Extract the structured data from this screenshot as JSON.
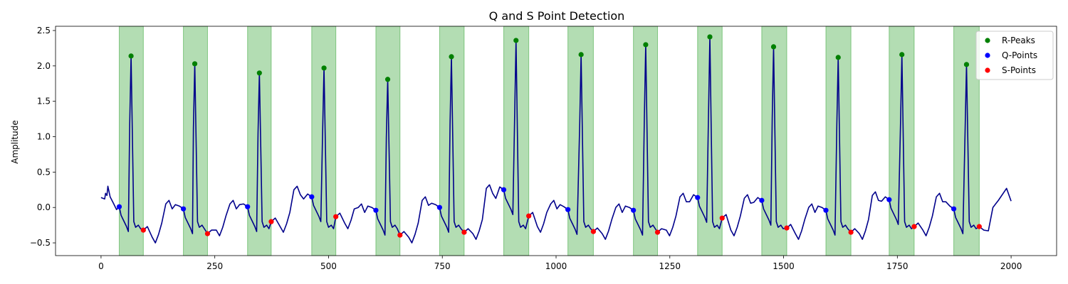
{
  "chart_data": {
    "type": "line",
    "title": "Q and S Point Detection",
    "xlabel": "",
    "ylabel": "Amplitude",
    "xlim": [
      -100,
      2100
    ],
    "ylim": [
      -0.68,
      2.56
    ],
    "xticks": [
      0,
      250,
      500,
      750,
      1000,
      1250,
      1500,
      1750,
      2000
    ],
    "yticks": [
      -0.5,
      0.0,
      0.5,
      1.0,
      1.5,
      2.0,
      2.5
    ],
    "ytick_labels": [
      "−0.5",
      "0.0",
      "0.5",
      "1.0",
      "1.5",
      "2.0",
      "2.5"
    ],
    "grid": false,
    "legend_position": "top-right",
    "colors": {
      "signal": "#00008b",
      "shading": "#2ca02c",
      "r_peaks": "#008000",
      "q_points": "#0000ff",
      "s_points": "#ff0000"
    },
    "shaded_intervals": [
      [
        40,
        93
      ],
      [
        181,
        234
      ],
      [
        322,
        374
      ],
      [
        463,
        516
      ],
      [
        604,
        657
      ],
      [
        744,
        798
      ],
      [
        885,
        940
      ],
      [
        1026,
        1082
      ],
      [
        1170,
        1223
      ],
      [
        1311,
        1365
      ],
      [
        1452,
        1507
      ],
      [
        1593,
        1648
      ],
      [
        1732,
        1787
      ],
      [
        1874,
        1930
      ]
    ],
    "series": [
      {
        "name": "R-Peaks",
        "marker": "circle",
        "x": [
          66,
          206,
          348,
          490,
          630,
          770,
          912,
          1055,
          1197,
          1338,
          1478,
          1620,
          1760,
          1902
        ],
        "y": [
          2.14,
          2.03,
          1.9,
          1.97,
          1.81,
          2.13,
          2.36,
          2.16,
          2.3,
          2.41,
          2.27,
          2.12,
          2.16,
          2.02
        ]
      },
      {
        "name": "Q-Points",
        "marker": "circle",
        "x": [
          40,
          181,
          322,
          463,
          604,
          744,
          885,
          1026,
          1170,
          1311,
          1452,
          1593,
          1732,
          1874
        ],
        "y": [
          0.01,
          -0.02,
          0.01,
          0.15,
          -0.04,
          0.0,
          0.25,
          -0.03,
          -0.04,
          0.14,
          0.1,
          -0.04,
          0.11,
          -0.02
        ]
      },
      {
        "name": "S-Points",
        "marker": "circle",
        "x": [
          93,
          234,
          374,
          516,
          657,
          798,
          940,
          1082,
          1223,
          1365,
          1507,
          1648,
          1787,
          1930
        ],
        "y": [
          -0.32,
          -0.37,
          -0.2,
          -0.13,
          -0.39,
          -0.35,
          -0.12,
          -0.34,
          -0.35,
          -0.15,
          -0.29,
          -0.35,
          -0.27,
          -0.27
        ]
      }
    ],
    "signal": {
      "beats": [
        {
          "q": 40,
          "r": 66,
          "s": 93,
          "pre": 0.2,
          "qv": 0.01,
          "rv": 2.14,
          "sv": -0.32,
          "tmin": -0.5
        },
        {
          "q": 181,
          "r": 206,
          "s": 234,
          "pre": 0.1,
          "qv": -0.02,
          "rv": 2.03,
          "sv": -0.37,
          "tmin": -0.4
        },
        {
          "q": 322,
          "r": 348,
          "s": 374,
          "pre": 0.1,
          "qv": 0.01,
          "rv": 1.9,
          "sv": -0.2,
          "tmin": -0.35
        },
        {
          "q": 463,
          "r": 490,
          "s": 516,
          "pre": 0.3,
          "qv": 0.15,
          "rv": 1.97,
          "sv": -0.13,
          "tmin": -0.3
        },
        {
          "q": 604,
          "r": 630,
          "s": 657,
          "pre": 0.05,
          "qv": -0.04,
          "rv": 1.81,
          "sv": -0.39,
          "tmin": -0.5
        },
        {
          "q": 744,
          "r": 770,
          "s": 798,
          "pre": 0.15,
          "qv": 0.0,
          "rv": 2.13,
          "sv": -0.35,
          "tmin": -0.45
        },
        {
          "q": 885,
          "r": 912,
          "s": 940,
          "pre": 0.32,
          "qv": 0.25,
          "rv": 2.36,
          "sv": -0.12,
          "tmin": -0.35
        },
        {
          "q": 1026,
          "r": 1055,
          "s": 1082,
          "pre": 0.1,
          "qv": -0.03,
          "rv": 2.16,
          "sv": -0.34,
          "tmin": -0.45
        },
        {
          "q": 1170,
          "r": 1197,
          "s": 1223,
          "pre": 0.05,
          "qv": -0.04,
          "rv": 2.3,
          "sv": -0.35,
          "tmin": -0.4
        },
        {
          "q": 1311,
          "r": 1338,
          "s": 1365,
          "pre": 0.2,
          "qv": 0.14,
          "rv": 2.41,
          "sv": -0.15,
          "tmin": -0.4
        },
        {
          "q": 1452,
          "r": 1478,
          "s": 1507,
          "pre": 0.18,
          "qv": 0.1,
          "rv": 2.27,
          "sv": -0.29,
          "tmin": -0.45
        },
        {
          "q": 1593,
          "r": 1620,
          "s": 1648,
          "pre": 0.05,
          "qv": -0.04,
          "rv": 2.12,
          "sv": -0.35,
          "tmin": -0.45
        },
        {
          "q": 1732,
          "r": 1760,
          "s": 1787,
          "pre": 0.22,
          "qv": 0.11,
          "rv": 2.16,
          "sv": -0.27,
          "tmin": -0.4
        },
        {
          "q": 1874,
          "r": 1902,
          "s": 1930,
          "pre": 0.2,
          "qv": -0.02,
          "rv": 2.02,
          "sv": -0.27,
          "tmin": -0.38
        }
      ],
      "start": [
        0,
        0.14
      ],
      "end": [
        2000,
        0.09
      ],
      "end_hump": [
        1990,
        0.27
      ]
    }
  }
}
